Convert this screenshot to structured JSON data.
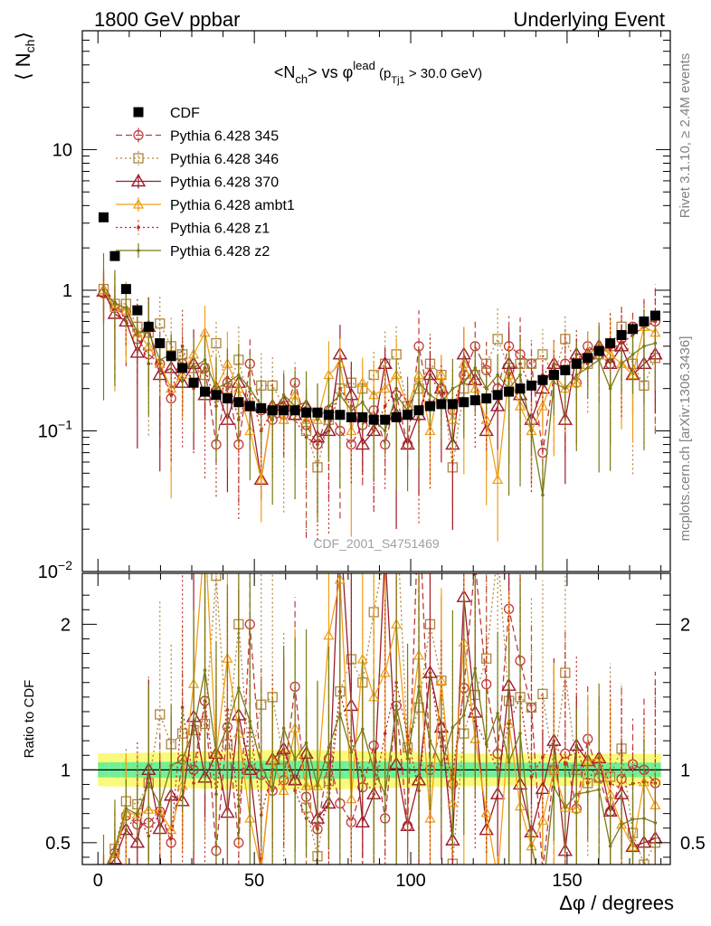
{
  "header": {
    "left": "1800 GeV ppbar",
    "right": "Underlying Event"
  },
  "side_text": {
    "rivet": "Rivet 3.1.10, ≥ 2.4M events",
    "mcplots": "mcplots.cern.ch [arXiv:1306.3436]"
  },
  "watermark": "CDF_2001_S4751469",
  "chart_data": [
    {
      "type": "scatter",
      "panel": "main",
      "title": "<Nch> vs φlead (pTj1 > 30.0 GeV)",
      "title_parts": {
        "a": "<N",
        "a_sub": "ch",
        "b": "> vs φ",
        "b_sup": "lead",
        "c": " (p",
        "c_sub": "Tj1",
        "d": " > 30.0 GeV)"
      },
      "ylabel": "⟨ Nch ⟩",
      "ylabel_parts": {
        "main": "⟨ N",
        "sub": "ch",
        "close": "⟩"
      },
      "xlabel": "",
      "yscale": "log",
      "xlim": [
        -5,
        183
      ],
      "ylim": [
        0.01,
        70
      ],
      "y_ticks": [
        {
          "v": 10,
          "label": "10"
        },
        {
          "v": 1,
          "label": "1"
        },
        {
          "v": 0.1,
          "label": "10",
          "sup": "−1"
        },
        {
          "v": 0.01,
          "label": "10",
          "sup": "−2"
        }
      ],
      "legend_position": "top-left",
      "x": [
        1.8,
        5.4,
        9,
        12.6,
        16.2,
        19.8,
        23.4,
        27,
        30.6,
        34.2,
        37.8,
        41.4,
        45,
        48.6,
        52.2,
        55.8,
        59.4,
        63,
        66.6,
        70.2,
        73.8,
        77.4,
        81,
        84.6,
        88.2,
        91.8,
        95.4,
        99,
        102.6,
        106.2,
        109.8,
        113.4,
        117,
        120.6,
        124.2,
        127.8,
        131.4,
        135,
        138.6,
        142.2,
        145.8,
        149.4,
        153,
        156.6,
        160.2,
        163.8,
        167.4,
        171,
        174.6,
        178.2
      ],
      "series": [
        {
          "name": "CDF",
          "values": [
            3.3,
            1.75,
            1.02,
            0.72,
            0.55,
            0.42,
            0.34,
            0.28,
            0.22,
            0.19,
            0.18,
            0.17,
            0.16,
            0.15,
            0.145,
            0.14,
            0.14,
            0.14,
            0.135,
            0.135,
            0.13,
            0.13,
            0.125,
            0.125,
            0.12,
            0.12,
            0.125,
            0.13,
            0.14,
            0.15,
            0.155,
            0.155,
            0.16,
            0.165,
            0.17,
            0.18,
            0.19,
            0.2,
            0.21,
            0.23,
            0.25,
            0.27,
            0.3,
            0.33,
            0.37,
            0.42,
            0.48,
            0.53,
            0.6,
            0.66
          ]
        },
        {
          "name": "Pythia 6.428 345",
          "values": [
            0.95,
            0.75,
            0.7,
            0.45,
            0.35,
            0.3,
            0.17,
            0.3,
            0.22,
            0.28,
            0.08,
            0.22,
            0.08,
            0.3,
            0.14,
            0.12,
            0.13,
            0.22,
            0.11,
            0.08,
            0.14,
            0.1,
            0.08,
            0.11,
            0.14,
            0.08,
            0.18,
            0.08,
            0.4,
            0.15,
            0.2,
            0.14,
            0.25,
            0.4,
            0.27,
            0.2,
            0.4,
            0.35,
            0.3,
            0.07,
            0.25,
            0.3,
            0.22,
            0.4,
            0.35,
            0.3,
            0.45,
            0.55,
            0.6,
            0.6
          ]
        },
        {
          "name": "Pythia 6.428 346",
          "values": [
            1.02,
            0.8,
            0.8,
            0.55,
            0.5,
            0.58,
            0.4,
            0.35,
            0.28,
            0.25,
            0.42,
            0.2,
            0.32,
            0.15,
            0.21,
            0.21,
            0.15,
            0.13,
            0.1,
            0.055,
            0.12,
            0.2,
            0.22,
            0.2,
            0.25,
            0.3,
            0.35,
            0.15,
            0.2,
            0.3,
            0.25,
            0.055,
            0.2,
            0.25,
            0.3,
            0.45,
            0.28,
            0.3,
            0.3,
            0.35,
            0.25,
            0.45,
            0.3,
            0.3,
            0.35,
            0.4,
            0.55,
            0.3,
            0.21,
            0.33
          ]
        },
        {
          "name": "Pythia 6.428 370",
          "values": [
            0.98,
            0.68,
            0.6,
            0.36,
            0.55,
            0.25,
            0.28,
            0.22,
            0.3,
            0.18,
            0.2,
            0.12,
            0.22,
            0.15,
            0.045,
            0.15,
            0.16,
            0.13,
            0.15,
            0.09,
            0.1,
            0.35,
            0.18,
            0.08,
            0.1,
            0.3,
            0.13,
            0.08,
            0.13,
            0.25,
            0.2,
            0.08,
            0.35,
            0.23,
            0.1,
            0.15,
            0.3,
            0.18,
            0.12,
            0.2,
            0.3,
            0.12,
            0.35,
            0.35,
            0.4,
            0.3,
            0.4,
            0.25,
            0.3,
            0.35
          ]
        },
        {
          "name": "Pythia 6.428 ambt1",
          "values": [
            1,
            0.75,
            0.72,
            0.5,
            0.4,
            0.3,
            0.2,
            0.25,
            0.35,
            0.5,
            0.2,
            0.3,
            0.2,
            0.1,
            0.045,
            0.15,
            0.12,
            0.18,
            0.12,
            0.12,
            0.25,
            0.3,
            0.1,
            0.22,
            0.18,
            0.2,
            0.25,
            0.15,
            0.25,
            0.1,
            0.25,
            0.12,
            0.3,
            0.2,
            0.12,
            0.045,
            0.25,
            0.15,
            0.1,
            0.15,
            0.25,
            0.2,
            0.22,
            0.35,
            0.4,
            0.35,
            0.3,
            0.25,
            0.55,
            0.5
          ]
        },
        {
          "name": "Pythia 6.428 z1",
          "values": [
            0.9,
            0.82,
            0.6,
            0.5,
            0.3,
            0.3,
            0.18,
            0.4,
            0.2,
            0.28,
            0.15,
            0.24,
            0.12,
            0.2,
            0.1,
            0.14,
            0.16,
            0.12,
            0.09,
            0.08,
            0.1,
            0.2,
            0.15,
            0.12,
            0.1,
            0.15,
            0.2,
            0.16,
            0.12,
            0.25,
            0.18,
            0.15,
            0.25,
            0.22,
            0.2,
            0.18,
            0.25,
            0.3,
            0.2,
            0.25,
            0.3,
            0.28,
            0.35,
            0.3,
            0.4,
            0.38,
            0.42,
            0.48,
            0.55,
            0.6
          ]
        },
        {
          "name": "Pythia 6.428 z2",
          "values": [
            1,
            0.8,
            0.75,
            0.5,
            0.5,
            0.32,
            0.35,
            0.3,
            0.28,
            0.32,
            0.2,
            0.22,
            0.25,
            0.2,
            0.15,
            0.12,
            0.18,
            0.15,
            0.16,
            0.12,
            0.15,
            0.18,
            0.14,
            0.16,
            0.12,
            0.1,
            0.18,
            0.14,
            0.22,
            0.18,
            0.16,
            0.2,
            0.22,
            0.28,
            0.2,
            0.25,
            0.2,
            0.25,
            0.1,
            0.035,
            0.22,
            0.2,
            0.25,
            0.28,
            0.32,
            0.2,
            0.3,
            0.35,
            0.4,
            0.42
          ]
        }
      ]
    },
    {
      "type": "scatter",
      "panel": "ratio",
      "ylabel": "Ratio to CDF",
      "xlabel": "Δφ / degrees",
      "xlim": [
        -5,
        183
      ],
      "ylim": [
        0.35,
        2.35
      ],
      "x_ticks": [
        0,
        50,
        100,
        150
      ],
      "y_ticks": [
        0.5,
        1,
        2
      ],
      "uncertainty_bands": [
        {
          "name": "stat",
          "half_width": 0.05
        },
        {
          "name": "stat+syst",
          "half_width": 0.11
        }
      ],
      "ratios_reference": "CDF"
    }
  ],
  "colors": {
    "CDF": "#000000",
    "Pythia 6.428 345": "#c0393b",
    "Pythia 6.428 346": "#b0853c",
    "Pythia 6.428 370": "#9b1b2e",
    "Pythia 6.428 ambt1": "#f0a018",
    "Pythia 6.428 z1": "#c0281e",
    "Pythia 6.428 z2": "#7b7b18",
    "band_inner": "#6ef096",
    "band_outer": "#fafa7a"
  },
  "markers": {
    "CDF": "square-filled",
    "Pythia 6.428 345": "circle-open",
    "Pythia 6.428 346": "square-open",
    "Pythia 6.428 370": "triangle-open",
    "Pythia 6.428 ambt1": "triangle-open-small",
    "Pythia 6.428 z1": "dot",
    "Pythia 6.428 z2": "dot"
  },
  "linestyles": {
    "Pythia 6.428 345": "dashed",
    "Pythia 6.428 346": "dotted",
    "Pythia 6.428 370": "solid",
    "Pythia 6.428 ambt1": "solid",
    "Pythia 6.428 z1": "dotted",
    "Pythia 6.428 z2": "solid"
  }
}
